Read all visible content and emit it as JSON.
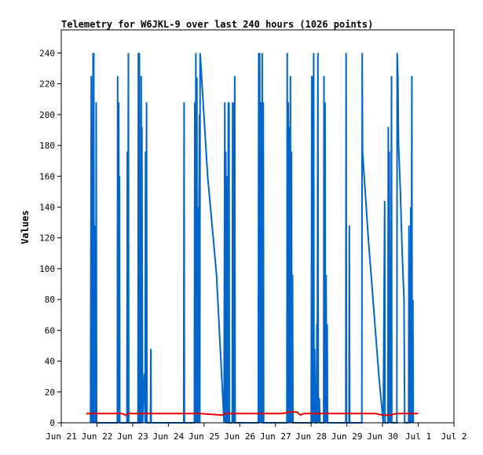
{
  "chart_data": {
    "type": "line",
    "title": "Telemetry for W6JKL-9 over last 240 hours (1026 points)",
    "xlabel": "",
    "ylabel": "Values",
    "grid": false,
    "legend": "none",
    "xlim": [
      0,
      11
    ],
    "ylim": [
      0,
      255
    ],
    "x_ticks": [
      {
        "label": "Jun 21",
        "value": 0
      },
      {
        "label": "Jun 22",
        "value": 1
      },
      {
        "label": "Jun 23",
        "value": 2
      },
      {
        "label": "Jun 24",
        "value": 3
      },
      {
        "label": "Jun 25",
        "value": 4
      },
      {
        "label": "Jun 26",
        "value": 5
      },
      {
        "label": "Jun 27",
        "value": 6
      },
      {
        "label": "Jun 28",
        "value": 7
      },
      {
        "label": "Jun 29",
        "value": 8
      },
      {
        "label": "Jun 30",
        "value": 9
      },
      {
        "label": "Jul 1",
        "value": 10
      },
      {
        "label": "Jul 2",
        "value": 11
      }
    ],
    "y_ticks": [
      0,
      20,
      40,
      60,
      80,
      100,
      120,
      140,
      160,
      180,
      200,
      220,
      240
    ],
    "series": [
      {
        "color": "#0066cc",
        "points": [
          [
            0.82,
            0
          ],
          [
            0.84,
            225
          ],
          [
            0.85,
            0
          ],
          [
            0.86,
            88
          ],
          [
            0.87,
            0
          ],
          [
            0.89,
            240
          ],
          [
            0.9,
            0
          ],
          [
            0.91,
            240
          ],
          [
            0.92,
            0
          ],
          [
            0.94,
            128
          ],
          [
            0.95,
            0
          ],
          [
            0.96,
            128
          ],
          [
            0.97,
            0
          ],
          [
            0.98,
            208
          ],
          [
            0.99,
            0
          ],
          [
            1.57,
            0
          ],
          [
            1.58,
            225
          ],
          [
            1.59,
            0
          ],
          [
            1.61,
            208
          ],
          [
            1.62,
            0
          ],
          [
            1.63,
            160
          ],
          [
            1.64,
            0
          ],
          [
            1.84,
            0
          ],
          [
            1.85,
            176
          ],
          [
            1.86,
            0
          ],
          [
            1.88,
            240
          ],
          [
            1.89,
            0
          ],
          [
            2.15,
            0
          ],
          [
            2.16,
            240
          ],
          [
            2.17,
            0
          ],
          [
            2.19,
            240
          ],
          [
            2.2,
            0
          ],
          [
            2.23,
            0
          ],
          [
            2.24,
            225
          ],
          [
            2.25,
            0
          ],
          [
            2.26,
            192
          ],
          [
            2.28,
            0
          ],
          [
            2.3,
            16
          ],
          [
            2.33,
            32
          ],
          [
            2.35,
            0
          ],
          [
            2.36,
            176
          ],
          [
            2.37,
            0
          ],
          [
            2.39,
            208
          ],
          [
            2.4,
            0
          ],
          [
            2.5,
            0
          ],
          [
            2.51,
            48
          ],
          [
            2.52,
            0
          ],
          [
            3.43,
            0
          ],
          [
            3.44,
            208
          ],
          [
            3.45,
            0
          ],
          [
            3.73,
            0
          ],
          [
            3.74,
            208
          ],
          [
            3.75,
            0
          ],
          [
            3.77,
            240
          ],
          [
            3.78,
            0
          ],
          [
            3.8,
            224
          ],
          [
            3.81,
            0
          ],
          [
            3.82,
            140
          ],
          [
            3.84,
            0
          ],
          [
            3.87,
            200
          ],
          [
            3.88,
            0
          ],
          [
            3.89,
            240
          ],
          [
            4.1,
            160
          ],
          [
            4.35,
            96
          ],
          [
            4.56,
            0
          ],
          [
            4.58,
            208
          ],
          [
            4.59,
            0
          ],
          [
            4.61,
            176
          ],
          [
            4.62,
            0
          ],
          [
            4.64,
            160
          ],
          [
            4.65,
            0
          ],
          [
            4.66,
            0
          ],
          [
            4.68,
            208
          ],
          [
            4.69,
            0
          ],
          [
            4.7,
            208
          ],
          [
            4.71,
            0
          ],
          [
            4.79,
            0
          ],
          [
            4.8,
            208
          ],
          [
            4.81,
            0
          ],
          [
            4.83,
            208
          ],
          [
            4.84,
            0
          ],
          [
            4.86,
            225
          ],
          [
            4.87,
            0
          ],
          [
            5.52,
            0
          ],
          [
            5.53,
            240
          ],
          [
            5.54,
            0
          ],
          [
            5.56,
            240
          ],
          [
            5.57,
            0
          ],
          [
            5.59,
            208
          ],
          [
            5.6,
            0
          ],
          [
            5.63,
            240
          ],
          [
            5.64,
            0
          ],
          [
            5.66,
            208
          ],
          [
            5.67,
            0
          ],
          [
            6.32,
            0
          ],
          [
            6.33,
            240
          ],
          [
            6.34,
            0
          ],
          [
            6.36,
            208
          ],
          [
            6.37,
            0
          ],
          [
            6.39,
            192
          ],
          [
            6.4,
            0
          ],
          [
            6.42,
            225
          ],
          [
            6.43,
            0
          ],
          [
            6.45,
            176
          ],
          [
            6.46,
            0
          ],
          [
            6.48,
            96
          ],
          [
            6.49,
            0
          ],
          [
            7.0,
            0
          ],
          [
            7.02,
            225
          ],
          [
            7.03,
            0
          ],
          [
            7.04,
            225
          ],
          [
            7.05,
            0
          ],
          [
            7.07,
            240
          ],
          [
            7.08,
            0
          ],
          [
            7.1,
            48
          ],
          [
            7.12,
            0
          ],
          [
            7.15,
            0
          ],
          [
            7.16,
            64
          ],
          [
            7.17,
            0
          ],
          [
            7.19,
            240
          ],
          [
            7.2,
            0
          ],
          [
            7.23,
            16
          ],
          [
            7.25,
            0
          ],
          [
            7.35,
            0
          ],
          [
            7.36,
            225
          ],
          [
            7.37,
            0
          ],
          [
            7.39,
            208
          ],
          [
            7.4,
            0
          ],
          [
            7.42,
            96
          ],
          [
            7.43,
            0
          ],
          [
            7.45,
            64
          ],
          [
            7.46,
            0
          ],
          [
            7.97,
            0
          ],
          [
            7.98,
            240
          ],
          [
            7.99,
            0
          ],
          [
            8.06,
            0
          ],
          [
            8.07,
            128
          ],
          [
            8.08,
            0
          ],
          [
            8.42,
            0
          ],
          [
            8.43,
            240
          ],
          [
            8.44,
            176
          ],
          [
            8.6,
            120
          ],
          [
            8.9,
            30
          ],
          [
            9.02,
            0
          ],
          [
            9.06,
            144
          ],
          [
            9.07,
            0
          ],
          [
            9.15,
            0
          ],
          [
            9.16,
            192
          ],
          [
            9.17,
            0
          ],
          [
            9.19,
            176
          ],
          [
            9.2,
            0
          ],
          [
            9.22,
            56
          ],
          [
            9.23,
            0
          ],
          [
            9.25,
            225
          ],
          [
            9.26,
            0
          ],
          [
            9.4,
            0
          ],
          [
            9.41,
            240
          ],
          [
            9.43,
            225
          ],
          [
            9.45,
            180
          ],
          [
            9.5,
            150
          ],
          [
            9.55,
            110
          ],
          [
            9.6,
            80
          ],
          [
            9.62,
            0
          ],
          [
            9.73,
            0
          ],
          [
            9.74,
            128
          ],
          [
            9.75,
            0
          ],
          [
            9.77,
            100
          ],
          [
            9.78,
            0
          ],
          [
            9.79,
            140
          ],
          [
            9.8,
            0
          ],
          [
            9.82,
            225
          ],
          [
            9.83,
            0
          ],
          [
            9.85,
            80
          ],
          [
            9.86,
            0
          ]
        ]
      },
      {
        "color": "#ee0000",
        "points": [
          [
            0.7,
            6
          ],
          [
            1.7,
            6
          ],
          [
            1.8,
            5
          ],
          [
            1.9,
            6
          ],
          [
            2.5,
            6
          ],
          [
            3.9,
            6
          ],
          [
            4.5,
            5
          ],
          [
            4.6,
            6
          ],
          [
            5.5,
            6
          ],
          [
            6.2,
            6
          ],
          [
            6.4,
            7
          ],
          [
            6.6,
            7
          ],
          [
            6.7,
            5
          ],
          [
            6.8,
            6
          ],
          [
            7.5,
            6
          ],
          [
            8.0,
            6
          ],
          [
            8.5,
            6
          ],
          [
            8.8,
            6
          ],
          [
            9.0,
            5
          ],
          [
            9.2,
            5
          ],
          [
            9.4,
            6
          ],
          [
            10.0,
            6
          ]
        ]
      }
    ]
  }
}
